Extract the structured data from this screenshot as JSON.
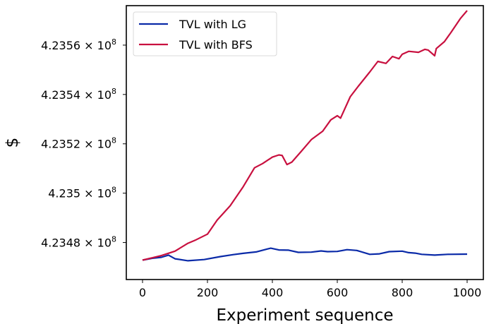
{
  "chart_data": {
    "type": "line",
    "title": "",
    "xlabel": "Experiment sequence",
    "ylabel": "$",
    "xlim": [
      -50,
      1050
    ],
    "ylim": [
      423465000,
      423576000
    ],
    "xticks": [
      0,
      200,
      400,
      600,
      800,
      1000
    ],
    "xtick_labels": [
      "0",
      "200",
      "400",
      "600",
      "800",
      "1000"
    ],
    "yticks": [
      423480000,
      423500000,
      423520000,
      423540000,
      423560000
    ],
    "ytick_labels": [
      {
        "mantissa": "4.2348",
        "base": "10",
        "exp": "8"
      },
      {
        "mantissa": "4.235",
        "base": "10",
        "exp": "8"
      },
      {
        "mantissa": "4.2352",
        "base": "10",
        "exp": "8"
      },
      {
        "mantissa": "4.2354",
        "base": "10",
        "exp": "8"
      },
      {
        "mantissa": "4.2356",
        "base": "10",
        "exp": "8"
      }
    ],
    "grid": false,
    "legend_position": "top-left",
    "series": [
      {
        "name": "TVL with LG",
        "color": "#0a2aa8",
        "x": [
          0,
          30,
          58,
          80,
          100,
          140,
          190,
          240,
          280,
          310,
          350,
          385,
          395,
          420,
          450,
          480,
          520,
          550,
          570,
          600,
          630,
          660,
          700,
          730,
          760,
          800,
          820,
          840,
          860,
          900,
          940,
          1000
        ],
        "y": [
          423472860,
          423473600,
          423474000,
          423474900,
          423473400,
          423472600,
          423473100,
          423474300,
          423475100,
          423475600,
          423476200,
          423477400,
          423477700,
          423477000,
          423476900,
          423476000,
          423476100,
          423476600,
          423476300,
          423476400,
          423477100,
          423476800,
          423475200,
          423475400,
          423476300,
          423476500,
          423475900,
          423475700,
          423475200,
          423474900,
          423475200,
          423475300
        ]
      },
      {
        "name": "TVL with BFS",
        "color": "#c8103f",
        "x": [
          0,
          30,
          58,
          100,
          140,
          165,
          200,
          230,
          270,
          310,
          345,
          370,
          400,
          420,
          430,
          445,
          460,
          490,
          520,
          555,
          580,
          600,
          610,
          640,
          665,
          700,
          725,
          750,
          770,
          790,
          800,
          820,
          850,
          870,
          880,
          900,
          905,
          930,
          950,
          980,
          1000
        ],
        "y": [
          423472860,
          423473800,
          423474700,
          423476500,
          423479700,
          423481100,
          423483400,
          423489100,
          423494900,
          423502600,
          423510300,
          423512000,
          423514600,
          423515500,
          423515300,
          423511600,
          423512600,
          423517100,
          423521700,
          423525100,
          423529700,
          423531400,
          423530400,
          423539100,
          423543400,
          423549100,
          423553400,
          423552600,
          423555400,
          423554500,
          423556300,
          423557500,
          423557100,
          423558300,
          423558000,
          423555700,
          423558600,
          423561400,
          423565100,
          423570900,
          423574000
        ]
      }
    ]
  }
}
